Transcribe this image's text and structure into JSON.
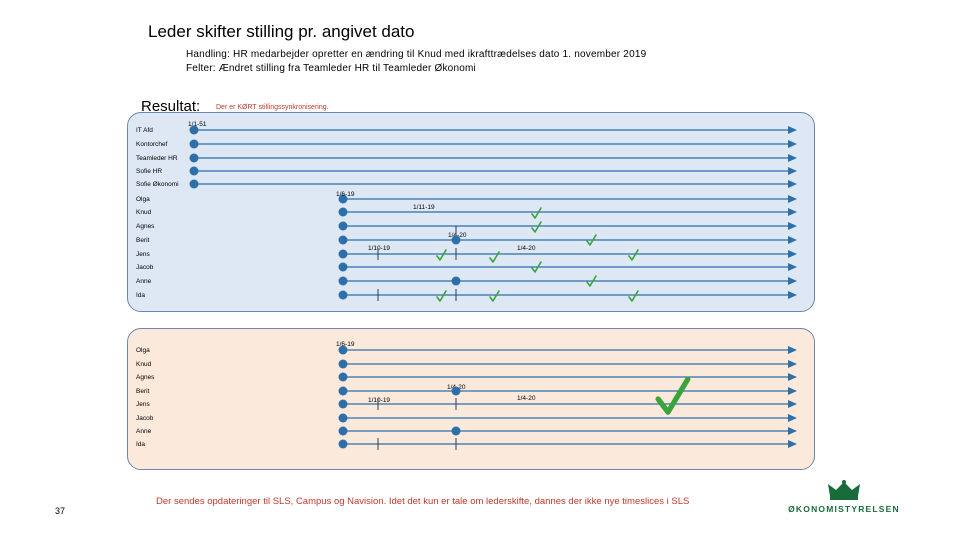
{
  "title": "Leder skifter stilling pr. angivet dato",
  "handling": "Handling: HR medarbejder opretter en ændring til Knud med ikrafttrædelses dato 1. november 2019",
  "felter": "Felter: Ændret stilling fra Teamleder HR til Teamleder Økonomi",
  "result_label": "Resultat:",
  "result_note": "Der er KØRT stillingssynkronisering.",
  "footer": "Der sendes opdateringer til SLS, Campus og Navision. Idet det kun er tale om lederskifte, dannes der ikke nye timeslices i SLS",
  "page_number": "37",
  "logo": {
    "text": "ØKONOMISTYRELSEN"
  },
  "colors": {
    "line": "#2e6faa",
    "node": "#2e6faa",
    "check": "#3aa33a",
    "top_bg": "#dde8f4",
    "bottom_bg": "#fbe9dc"
  },
  "top_panel": {
    "rows": [
      {
        "label": "IT Afd"
      },
      {
        "label": "Kontorchef"
      },
      {
        "label": "Teamleder HR"
      },
      {
        "label": "Sofie HR"
      },
      {
        "label": "Sofie Økonomi"
      },
      {
        "label": "Olga"
      },
      {
        "label": "Knud"
      },
      {
        "label": "Agnes"
      },
      {
        "label": "Berit"
      },
      {
        "label": "Jens"
      },
      {
        "label": "Jacob"
      },
      {
        "label": "Anne"
      },
      {
        "label": "Ida"
      }
    ],
    "date_labels": [
      "1/1-51",
      "1/6-19",
      "1/11-19",
      "1/4-20",
      "1/10-19",
      "1/4-20"
    ]
  },
  "bottom_panel": {
    "rows": [
      {
        "label": "Olga"
      },
      {
        "label": "Knud"
      },
      {
        "label": "Agnes"
      },
      {
        "label": "Berit"
      },
      {
        "label": "Jens"
      },
      {
        "label": "Jacob"
      },
      {
        "label": "Anne"
      },
      {
        "label": "Ida"
      }
    ],
    "date_labels": [
      "1/6-19",
      "1/4-20",
      "1/10-19",
      "1/4-20"
    ]
  }
}
